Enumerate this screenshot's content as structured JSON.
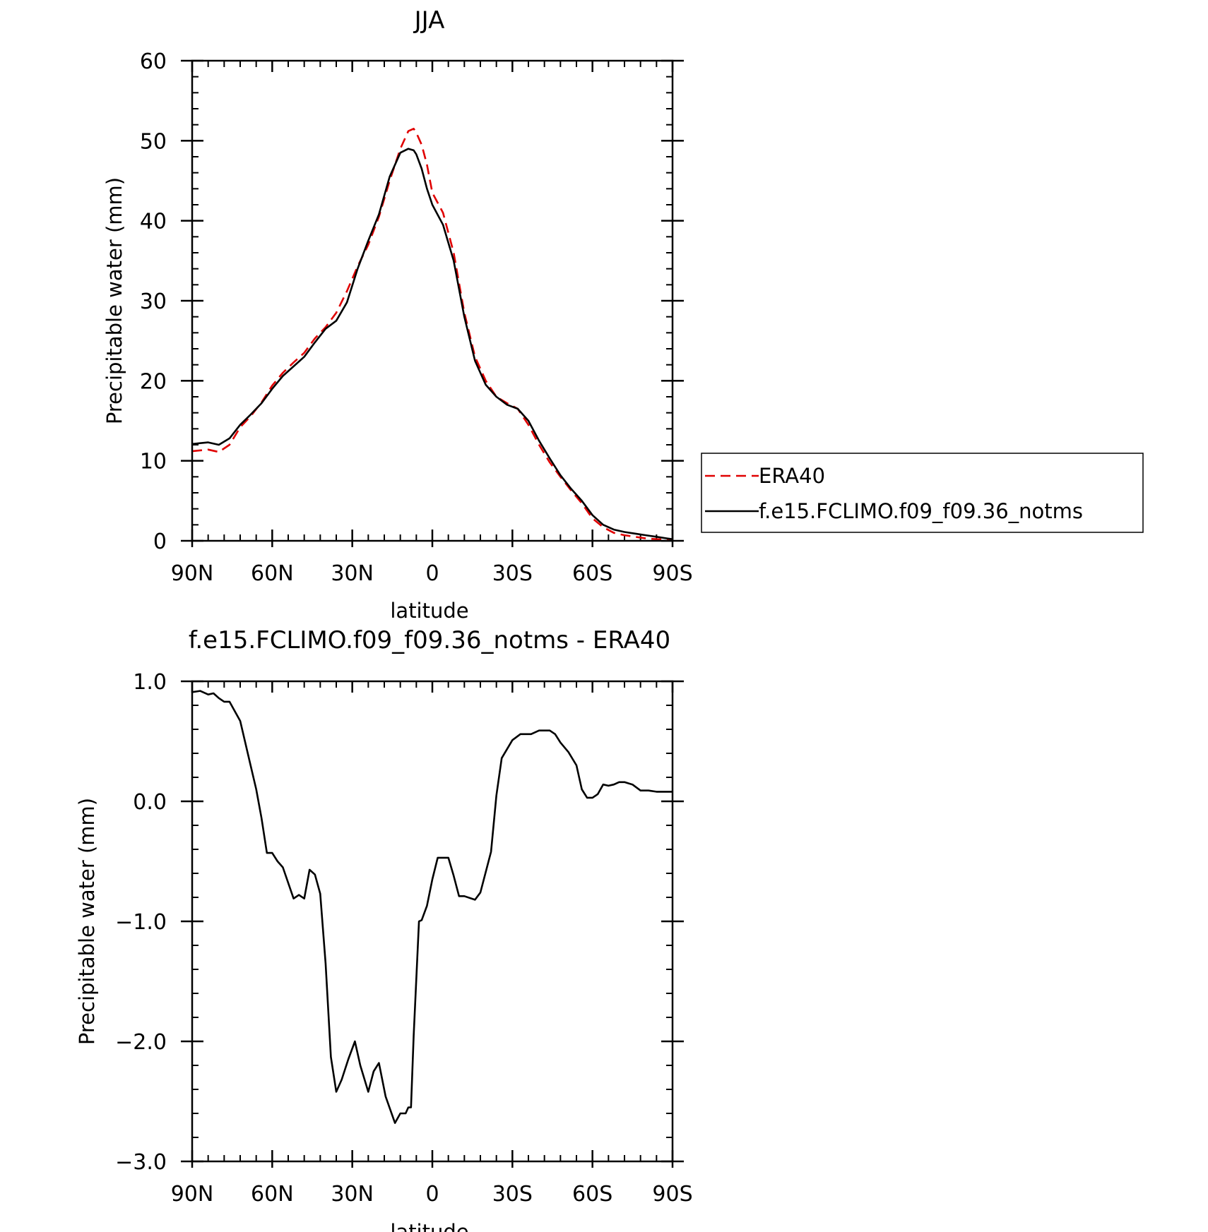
{
  "chart_data": [
    {
      "type": "line",
      "title": "JJA",
      "xlabel": "latitude",
      "ylabel": "Precipitable water (mm)",
      "xlim": [
        90,
        -90
      ],
      "ylim": [
        0,
        60
      ],
      "x_ticks": [
        90,
        60,
        30,
        0,
        -30,
        -60,
        -90
      ],
      "x_tick_labels": [
        "90N",
        "60N",
        "30N",
        "0",
        "30S",
        "60S",
        "90S"
      ],
      "y_ticks": [
        0,
        10,
        20,
        30,
        40,
        50,
        60
      ],
      "y_tick_labels": [
        "0",
        "10",
        "20",
        "30",
        "40",
        "50",
        "60"
      ],
      "grid": false,
      "legend_position": "right",
      "series": [
        {
          "name": "ERA40",
          "color": "#e00000",
          "dash": "dashed",
          "x": [
            90,
            87,
            84,
            80,
            76,
            72,
            68,
            64,
            60,
            56,
            52,
            48,
            44,
            40,
            36,
            32,
            28,
            24,
            20,
            16,
            12,
            9,
            7,
            6,
            4,
            2,
            0,
            -4,
            -8,
            -12,
            -16,
            -20,
            -24,
            -28,
            -32,
            -36,
            -40,
            -44,
            -48,
            -52,
            -56,
            -60,
            -64,
            -68,
            -72,
            -76,
            -80,
            -84,
            -88,
            -90
          ],
          "values": [
            11.2,
            11.3,
            11.4,
            11.1,
            12.0,
            14.2,
            15.6,
            17.3,
            19.4,
            21.0,
            22.3,
            23.5,
            25.3,
            26.7,
            28.5,
            31.2,
            34.3,
            37.0,
            40.5,
            45.0,
            49.0,
            51.2,
            51.5,
            51.0,
            49.5,
            47.0,
            43.5,
            41.0,
            36.0,
            28.5,
            23.0,
            20.0,
            18.0,
            17.2,
            16.5,
            14.5,
            12.0,
            9.8,
            8.0,
            6.3,
            4.7,
            2.8,
            1.7,
            1.0,
            0.7,
            0.5,
            0.3,
            0.2,
            0.15,
            0.1
          ]
        },
        {
          "name": "f.e15.FCLIMO.f09_f09.36_notms",
          "color": "#000000",
          "dash": "solid",
          "x": [
            90,
            87,
            84,
            80,
            76,
            72,
            68,
            64,
            60,
            56,
            52,
            48,
            44,
            40,
            36,
            32,
            28,
            24,
            20,
            16,
            12,
            9,
            7,
            6,
            4,
            2,
            0,
            -4,
            -8,
            -12,
            -16,
            -20,
            -24,
            -28,
            -32,
            -36,
            -40,
            -44,
            -48,
            -52,
            -56,
            -60,
            -64,
            -68,
            -72,
            -76,
            -80,
            -84,
            -88,
            -90
          ],
          "values": [
            12.1,
            12.2,
            12.3,
            12.0,
            12.8,
            14.5,
            15.8,
            17.2,
            19.0,
            20.6,
            21.8,
            23.0,
            24.8,
            26.5,
            27.5,
            29.8,
            34.0,
            37.5,
            40.8,
            45.5,
            48.5,
            49.0,
            48.8,
            48.3,
            46.5,
            44.0,
            42.0,
            39.5,
            35.0,
            28.0,
            22.5,
            19.5,
            18.0,
            17.0,
            16.5,
            15.0,
            12.5,
            10.3,
            8.2,
            6.5,
            5.0,
            3.2,
            2.0,
            1.4,
            1.1,
            0.9,
            0.7,
            0.5,
            0.3,
            0.2
          ]
        }
      ]
    },
    {
      "type": "line",
      "title": "f.e15.FCLIMO.f09_f09.36_notms - ERA40",
      "xlabel": "latitude",
      "ylabel": "Precipitable water (mm)",
      "xlim": [
        90,
        -90
      ],
      "ylim": [
        -3.0,
        1.0
      ],
      "x_ticks": [
        90,
        60,
        30,
        0,
        -30,
        -60,
        -90
      ],
      "x_tick_labels": [
        "90N",
        "60N",
        "30N",
        "0",
        "30S",
        "60S",
        "90S"
      ],
      "y_ticks": [
        -3.0,
        -2.0,
        -1.0,
        0.0,
        1.0
      ],
      "y_tick_labels": [
        "-3.0",
        "-2.0",
        "-1.0",
        "0.0",
        "1.0"
      ],
      "grid": false,
      "series": [
        {
          "color": "#000000",
          "dash": "solid",
          "x": [
            90,
            87,
            84,
            82,
            80,
            78,
            76,
            72,
            68,
            66,
            64,
            62,
            60,
            58,
            56,
            52,
            50,
            48,
            46,
            44,
            42,
            40,
            38,
            36,
            34,
            31.5,
            29,
            27,
            24,
            22,
            20,
            17.5,
            14,
            12,
            10,
            9,
            8,
            7,
            5,
            4,
            2,
            0,
            -2,
            -4,
            -6,
            -8,
            -10,
            -12,
            -16,
            -18,
            -22,
            -24,
            -26,
            -30,
            -33,
            -37,
            -40,
            -44,
            -46,
            -48,
            -51,
            -54,
            -56,
            -58,
            -60,
            -62,
            -64,
            -66,
            -68,
            -70,
            -72,
            -75,
            -78,
            -81,
            -84,
            -87,
            -90
          ],
          "values": [
            0.91,
            0.92,
            0.89,
            0.9,
            0.86,
            0.83,
            0.83,
            0.67,
            0.29,
            0.1,
            -0.14,
            -0.43,
            -0.43,
            -0.5,
            -0.55,
            -0.81,
            -0.78,
            -0.81,
            -0.57,
            -0.61,
            -0.77,
            -1.35,
            -2.13,
            -2.42,
            -2.32,
            -2.15,
            -2.0,
            -2.2,
            -2.42,
            -2.25,
            -2.18,
            -2.46,
            -2.68,
            -2.6,
            -2.6,
            -2.55,
            -2.55,
            -1.95,
            -1.0,
            -0.99,
            -0.87,
            -0.65,
            -0.47,
            -0.47,
            -0.47,
            -0.62,
            -0.79,
            -0.79,
            -0.82,
            -0.76,
            -0.42,
            0.05,
            0.36,
            0.51,
            0.56,
            0.56,
            0.59,
            0.59,
            0.56,
            0.49,
            0.41,
            0.3,
            0.1,
            0.03,
            0.03,
            0.06,
            0.14,
            0.13,
            0.14,
            0.16,
            0.16,
            0.14,
            0.09,
            0.09,
            0.08,
            0.08,
            0.08
          ]
        }
      ]
    }
  ]
}
